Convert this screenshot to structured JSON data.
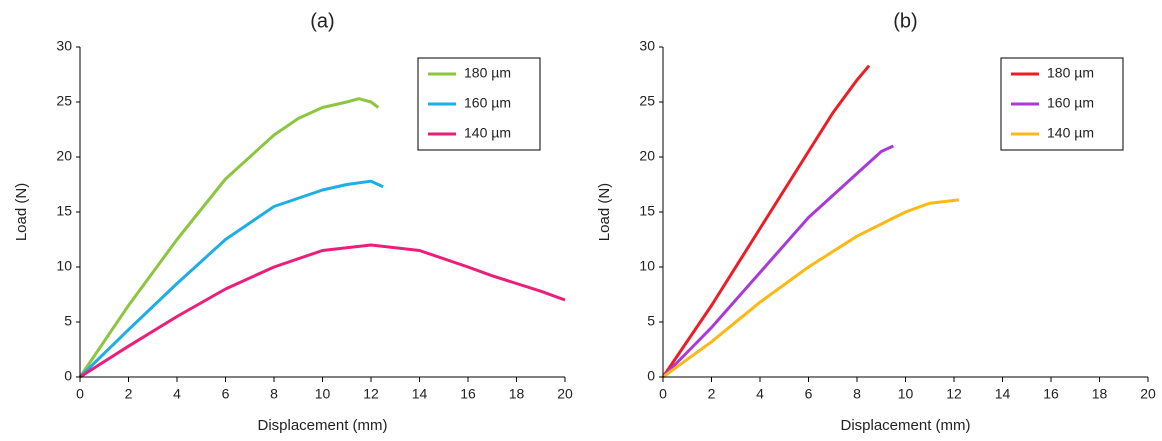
{
  "chart_data": [
    {
      "type": "line",
      "title": "(a)",
      "x_label": "Displacement (mm)",
      "y_label": "Load (N)",
      "xlim": [
        0,
        20
      ],
      "ylim": [
        0,
        30
      ],
      "xticks": [
        0,
        2,
        4,
        6,
        8,
        10,
        12,
        14,
        16,
        18,
        20
      ],
      "yticks": [
        0,
        5,
        10,
        15,
        20,
        25,
        30
      ],
      "legend": "upper right",
      "series": [
        {
          "name": "180 µm",
          "color": "#8cc63f",
          "x": [
            0,
            2,
            4,
            6,
            8,
            9,
            10,
            11,
            11.5,
            12,
            12.3
          ],
          "values": [
            0,
            6.5,
            12.5,
            18,
            22,
            23.5,
            24.5,
            25,
            25.3,
            25,
            24.5
          ]
        },
        {
          "name": "160 µm",
          "color": "#1eaee6",
          "x": [
            0,
            2,
            4,
            6,
            8,
            10,
            11,
            12,
            12.5
          ],
          "values": [
            0,
            4.3,
            8.5,
            12.5,
            15.5,
            17,
            17.5,
            17.8,
            17.3
          ]
        },
        {
          "name": "140 µm",
          "color": "#ec1e79",
          "x": [
            0,
            2,
            4,
            6,
            8,
            10,
            12,
            14,
            16,
            17,
            18,
            19,
            20
          ],
          "values": [
            0,
            2.8,
            5.5,
            8,
            10,
            11.5,
            12,
            11.5,
            10,
            9.2,
            8.5,
            7.8,
            7
          ]
        }
      ]
    },
    {
      "type": "line",
      "title": "(b)",
      "x_label": "Displacement (mm)",
      "y_label": "Load (N)",
      "xlim": [
        0,
        20
      ],
      "ylim": [
        0,
        30
      ],
      "xticks": [
        0,
        2,
        4,
        6,
        8,
        10,
        12,
        14,
        16,
        18,
        20
      ],
      "yticks": [
        0,
        5,
        10,
        15,
        20,
        25,
        30
      ],
      "legend": "upper right",
      "series": [
        {
          "name": "180 µm",
          "color": "#ee1c24",
          "x": [
            0,
            2,
            4,
            6,
            7,
            8,
            8.5
          ],
          "values": [
            0,
            6.5,
            13.5,
            20.5,
            24,
            27,
            28.3
          ]
        },
        {
          "name": "160 µm",
          "color": "#a93ad8",
          "x": [
            0,
            2,
            4,
            6,
            8,
            9,
            9.5
          ],
          "values": [
            0,
            4.5,
            9.5,
            14.5,
            18.5,
            20.5,
            21
          ]
        },
        {
          "name": "140 µm",
          "color": "#fdb813",
          "x": [
            0,
            2,
            4,
            6,
            8,
            10,
            11,
            12.2
          ],
          "values": [
            0,
            3.2,
            6.8,
            10,
            12.8,
            15,
            15.8,
            16.1
          ]
        }
      ]
    }
  ]
}
